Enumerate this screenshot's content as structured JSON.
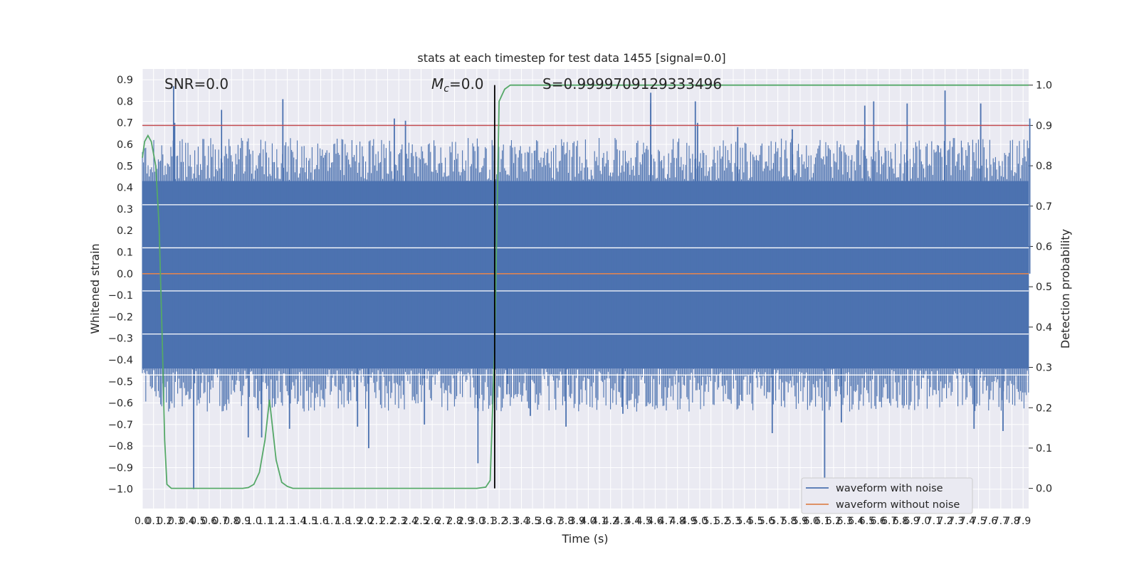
{
  "chart_data": {
    "type": "line",
    "title": "stats at each timestep for test data 1455 [signal=0.0]",
    "xlabel": "Time (s)",
    "ylabel_left": "Whitened strain",
    "ylabel_right": "Detection probability",
    "xlim": [
      0.0,
      7.95
    ],
    "ylim_left": [
      -1.09,
      0.95
    ],
    "ylim_right": [
      -0.05,
      1.04
    ],
    "x_ticks": [
      "0.0",
      "0.1",
      "0.2",
      "0.3",
      "0.4",
      "0.5",
      "0.6",
      "0.7",
      "0.8",
      "0.9",
      "1.0",
      "1.1",
      "1.2",
      "1.3",
      "1.4",
      "1.5",
      "1.6",
      "1.7",
      "1.8",
      "1.9",
      "2.0",
      "2.1",
      "2.2",
      "2.3",
      "2.4",
      "2.5",
      "2.6",
      "2.7",
      "2.8",
      "2.9",
      "3.0",
      "3.1",
      "3.2",
      "3.3",
      "3.4",
      "3.5",
      "3.6",
      "3.7",
      "3.8",
      "3.9",
      "4.0",
      "4.1",
      "4.2",
      "4.3",
      "4.4",
      "4.5",
      "4.6",
      "4.7",
      "4.8",
      "4.9",
      "5.0",
      "5.1",
      "5.2",
      "5.3",
      "5.4",
      "5.5",
      "5.6",
      "5.7",
      "5.8",
      "5.9",
      "6.0",
      "6.1",
      "6.2",
      "6.3",
      "6.4",
      "6.5",
      "6.6",
      "6.7",
      "6.8",
      "6.9",
      "7.0",
      "7.1",
      "7.2",
      "7.3",
      "7.4",
      "7.5",
      "7.6",
      "7.7",
      "7.8",
      "7.9"
    ],
    "y_ticks_left": [
      "-1.0",
      "-0.9",
      "-0.8",
      "-0.7",
      "-0.6",
      "-0.5",
      "-0.4",
      "-0.3",
      "-0.2",
      "-0.1",
      "0.0",
      "0.1",
      "0.2",
      "0.3",
      "0.4",
      "0.5",
      "0.6",
      "0.7",
      "0.8",
      "0.9"
    ],
    "y_ticks_right": [
      "0.0",
      "0.1",
      "0.2",
      "0.3",
      "0.4",
      "0.5",
      "0.6",
      "0.7",
      "0.8",
      "0.9",
      "1.0"
    ],
    "annotations": {
      "snr": "SNR=0.0",
      "mc_symbol": "M",
      "mc_sub": "c",
      "mc_value": "=0.0",
      "s_value": "S=0.9999709129333496"
    },
    "series": [
      {
        "name": "waveform with noise",
        "color": "#4c72b0",
        "kind": "noise",
        "band_left": [
          -0.44,
          0.43
        ],
        "spikes": [
          [
            0.28,
            0.87
          ],
          [
            0.29,
            0.7
          ],
          [
            1.26,
            0.81
          ],
          [
            0.71,
            0.76
          ],
          [
            2.26,
            0.72
          ],
          [
            2.36,
            0.71
          ],
          [
            4.56,
            0.84
          ],
          [
            4.56,
            0.79
          ],
          [
            4.96,
            0.8
          ],
          [
            4.98,
            0.7
          ],
          [
            5.34,
            0.68
          ],
          [
            5.83,
            0.67
          ],
          [
            6.48,
            0.78
          ],
          [
            6.56,
            0.8
          ],
          [
            6.86,
            0.79
          ],
          [
            7.2,
            0.85
          ],
          [
            7.52,
            0.79
          ],
          [
            7.96,
            0.72
          ],
          [
            0.46,
            -1.0
          ],
          [
            0.95,
            -0.76
          ],
          [
            1.07,
            -0.76
          ],
          [
            1.32,
            -0.72
          ],
          [
            1.93,
            -0.71
          ],
          [
            2.03,
            -0.81
          ],
          [
            2.53,
            -0.7
          ],
          [
            3.01,
            -0.88
          ],
          [
            3.27,
            -0.56
          ],
          [
            3.48,
            -0.66
          ],
          [
            3.8,
            -0.71
          ],
          [
            4.31,
            -0.65
          ],
          [
            5.65,
            -0.74
          ],
          [
            6.12,
            -0.96
          ],
          [
            6.27,
            -0.69
          ],
          [
            7.46,
            -0.72
          ],
          [
            7.72,
            -0.73
          ]
        ]
      },
      {
        "name": "waveform without noise",
        "color": "#dd8452",
        "values_left": [
          [
            0.0,
            0.0
          ],
          [
            7.95,
            0.0
          ]
        ]
      },
      {
        "name": "detection probability",
        "color": "#55a868",
        "axis": "right",
        "points": [
          [
            0.0,
            0.82
          ],
          [
            0.02,
            0.86
          ],
          [
            0.05,
            0.875
          ],
          [
            0.08,
            0.86
          ],
          [
            0.12,
            0.8
          ],
          [
            0.15,
            0.65
          ],
          [
            0.18,
            0.35
          ],
          [
            0.2,
            0.12
          ],
          [
            0.22,
            0.01
          ],
          [
            0.24,
            0.005
          ],
          [
            0.26,
            0.0
          ],
          [
            0.3,
            0.0
          ],
          [
            0.5,
            0.0
          ],
          [
            0.7,
            0.0
          ],
          [
            0.9,
            0.0
          ],
          [
            0.95,
            0.002
          ],
          [
            1.0,
            0.01
          ],
          [
            1.05,
            0.04
          ],
          [
            1.1,
            0.12
          ],
          [
            1.14,
            0.22
          ],
          [
            1.2,
            0.07
          ],
          [
            1.25,
            0.015
          ],
          [
            1.3,
            0.005
          ],
          [
            1.35,
            0.0
          ],
          [
            1.5,
            0.0
          ],
          [
            2.0,
            0.0
          ],
          [
            2.5,
            0.0
          ],
          [
            3.0,
            0.0
          ],
          [
            3.08,
            0.003
          ],
          [
            3.12,
            0.02
          ],
          [
            3.16,
            0.35
          ],
          [
            3.2,
            0.96
          ],
          [
            3.25,
            0.99
          ],
          [
            3.3,
            1.0
          ],
          [
            7.95,
            1.0
          ]
        ]
      }
    ],
    "reference_lines": {
      "threshold_right": 0.9,
      "threshold_color": "#c44e52",
      "vline_x": 3.16,
      "vline_color": "#000000"
    },
    "legend": {
      "placement": "lower-right",
      "entries": [
        "waveform with noise",
        "waveform without noise"
      ]
    },
    "grid": true
  }
}
